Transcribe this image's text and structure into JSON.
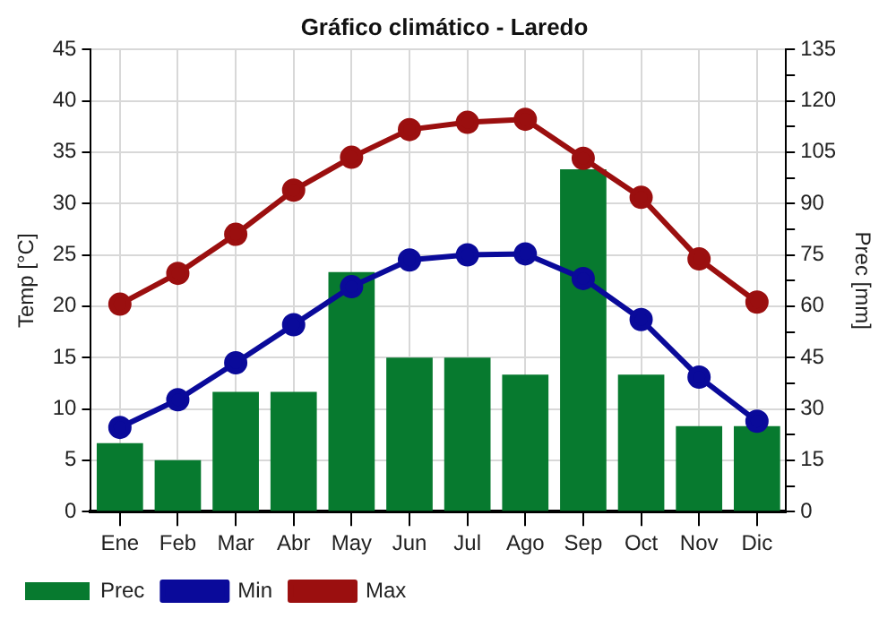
{
  "chart_data": {
    "type": "bar",
    "title": "Gráfico climático - Laredo",
    "ylabel": "Temp [°C]",
    "y2label": "Prec [mm]",
    "categories": [
      "Ene",
      "Feb",
      "Mar",
      "Abr",
      "May",
      "Jun",
      "Jul",
      "Ago",
      "Sep",
      "Oct",
      "Nov",
      "Dic"
    ],
    "series": [
      {
        "name": "Prec",
        "axis": "y2",
        "color": "#077a2f",
        "values": [
          20,
          15,
          35,
          35,
          70,
          45,
          45,
          40,
          100,
          40,
          25,
          25
        ]
      },
      {
        "name": "Min",
        "type": "line",
        "axis": "y",
        "color": "#0a0a9a",
        "values": [
          8.2,
          10.9,
          14.5,
          18.2,
          21.9,
          24.5,
          25,
          25.1,
          22.7,
          18.7,
          13.1,
          8.8
        ]
      },
      {
        "name": "Max",
        "type": "line",
        "axis": "y",
        "color": "#9b0f0f",
        "values": [
          20.2,
          23.2,
          27,
          31.3,
          34.5,
          37.2,
          37.9,
          38.2,
          34.4,
          30.6,
          24.6,
          20.4
        ]
      }
    ],
    "ylim": [
      0,
      45
    ],
    "yticks": [
      0,
      5,
      10,
      15,
      20,
      25,
      30,
      35,
      40,
      45
    ],
    "y2lim": [
      0,
      135
    ],
    "y2ticks": [
      0,
      {
        "value": 7.5,
        "label": null
      },
      15,
      {
        "value": 22.5,
        "label": null
      },
      30,
      {
        "value": 37.5,
        "label": null
      },
      45,
      {
        "value": 52.5,
        "label": null
      },
      60,
      {
        "value": 67.5,
        "label": null
      },
      75,
      {
        "value": 82.5,
        "label": null
      },
      90,
      {
        "value": 97.5,
        "label": null
      },
      105,
      {
        "value": 112.5,
        "label": null
      },
      120,
      {
        "value": 127.5,
        "label": null
      },
      135
    ],
    "grid": true,
    "legend": "bottom left",
    "marker": "circle",
    "line_style": "solid"
  }
}
